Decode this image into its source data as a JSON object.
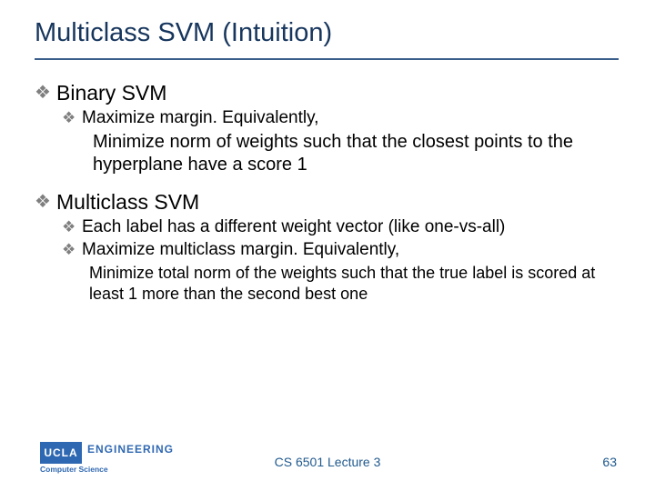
{
  "title": "Multiclass SVM (Intuition)",
  "colors": {
    "title": "#17365d",
    "rule": "#3a5e8a",
    "bullet": "#7f7f7f",
    "footer": "#215a8e",
    "logo_bg": "#2f68b2",
    "logo_text": "#ffffff"
  },
  "fonts": {
    "title_family": "Verdana",
    "title_size_pt": 22,
    "h1_size_pt": 17,
    "h2_size_pt": 14,
    "body_size_pt": 15
  },
  "sections": {
    "binary": {
      "heading": "Binary SVM",
      "sub1": "Maximize margin. Equivalently,",
      "detail": "Minimize norm of weights such that the closest points to the hyperplane have a score 1"
    },
    "multi": {
      "heading": "Multiclass SVM",
      "sub1": "Each label has a different weight vector (like one-vs-all)",
      "sub2": "Maximize multiclass margin. Equivalently,",
      "detail": "Minimize total norm of the weights such that the true label is scored at least 1 more than the second best one"
    }
  },
  "footer": {
    "course": "CS 6501 Lecture 3",
    "page": "63"
  },
  "logo": {
    "block": "UCLA",
    "line1": "ENGINEERING",
    "line2": "Computer Science"
  }
}
